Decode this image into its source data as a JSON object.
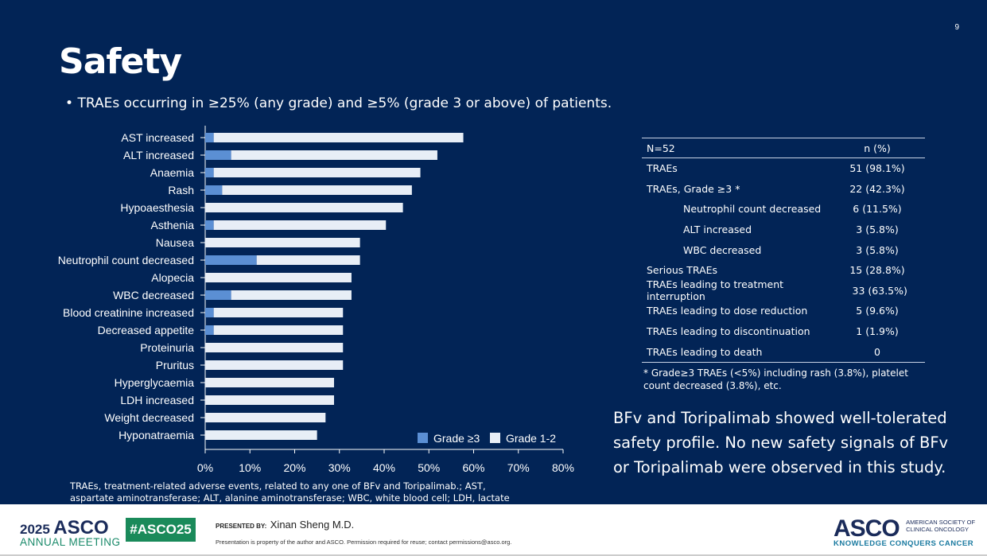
{
  "page_number": "9",
  "title": "Safety",
  "bullet": "TRAEs occurring in ≥25% (any grade) and ≥5% (grade 3 or above) of patients.",
  "colors": {
    "background": "#022456",
    "grade3": "#5B8FD4",
    "grade12": "#E8EEF6"
  },
  "chart_data": {
    "type": "bar",
    "orientation": "horizontal",
    "stacked": true,
    "categories": [
      "AST increased",
      "ALT increased",
      "Anaemia",
      "Rash",
      "Hypoaesthesia",
      "Asthenia",
      "Nausea",
      "Neutrophil count decreased",
      "Alopecia",
      "WBC decreased",
      "Blood creatinine increased",
      "Decreased appetite",
      "Proteinuria",
      "Pruritus",
      "Hyperglycaemia",
      "LDH increased",
      "Weight decreased",
      "Hyponatraemia"
    ],
    "series": [
      {
        "name": "Grade ≥3",
        "values": [
          1.9,
          5.8,
          1.9,
          3.8,
          0,
          1.9,
          0,
          11.5,
          0,
          5.8,
          1.9,
          1.9,
          0,
          0,
          0,
          0,
          0,
          0
        ]
      },
      {
        "name": "Grade 1-2",
        "values": [
          55.8,
          46.1,
          46.2,
          42.4,
          44.2,
          38.5,
          34.6,
          23.1,
          32.7,
          26.9,
          28.9,
          28.9,
          30.8,
          30.8,
          28.8,
          28.8,
          26.9,
          25.0
        ]
      }
    ],
    "xlim": [
      0,
      80
    ],
    "xticks": [
      "0%",
      "10%",
      "20%",
      "30%",
      "40%",
      "50%",
      "60%",
      "70%",
      "80%"
    ],
    "legend_position": "bottom-right"
  },
  "table": {
    "header": [
      "N=52",
      "n (%)"
    ],
    "rows": [
      {
        "label": "TRAEs",
        "value": "51 (98.1%)",
        "indent": false
      },
      {
        "label": "TRAEs, Grade ≥3 *",
        "value": "22 (42.3%)",
        "indent": false
      },
      {
        "label": "Neutrophil count decreased",
        "value": "6 (11.5%)",
        "indent": true
      },
      {
        "label": "ALT increased",
        "value": "3 (5.8%)",
        "indent": true
      },
      {
        "label": "WBC decreased",
        "value": "3 (5.8%)",
        "indent": true
      },
      {
        "label": "Serious TRAEs",
        "value": "15 (28.8%)",
        "indent": false
      },
      {
        "label": "TRAEs leading to treatment interruption",
        "value": "33 (63.5%)",
        "indent": false
      },
      {
        "label": "TRAEs leading to dose reduction",
        "value": "5 (9.6%)",
        "indent": false
      },
      {
        "label": "TRAEs leading to discontinuation",
        "value": "1 (1.9%)",
        "indent": false
      },
      {
        "label": "TRAEs leading to death",
        "value": "0",
        "indent": false
      }
    ],
    "note": "* Grade≥3 TRAEs (<5%) including rash (3.8%), platelet count decreased (3.8%), etc."
  },
  "conclusion": "BFv and Toripalimab showed well-tolerated safety profile. No new safety signals of BFv or Toripalimab were observed in this study.",
  "footnote": "TRAEs, treatment-related adverse events, related to any one of BFv and Toripalimab.; AST, aspartate aminotransferase; ALT, alanine aminotransferase; WBC, white blood cell; LDH, lactate dehydrogenase",
  "footer": {
    "year": "2025",
    "asco": "ASCO",
    "annual_meeting": "ANNUAL MEETING",
    "hashtag": "#ASCO25",
    "presented_by": "PRESENTED BY:",
    "presenter": "Xinan Sheng M.D.",
    "disclaimer": "Presentation is property of the author and ASCO. Permission required for reuse; contact permissions@asco.org.",
    "logo": "ASCO",
    "society": "AMERICAN SOCIETY OF CLINICAL ONCOLOGY",
    "tagline": "KNOWLEDGE CONQUERS CANCER"
  }
}
